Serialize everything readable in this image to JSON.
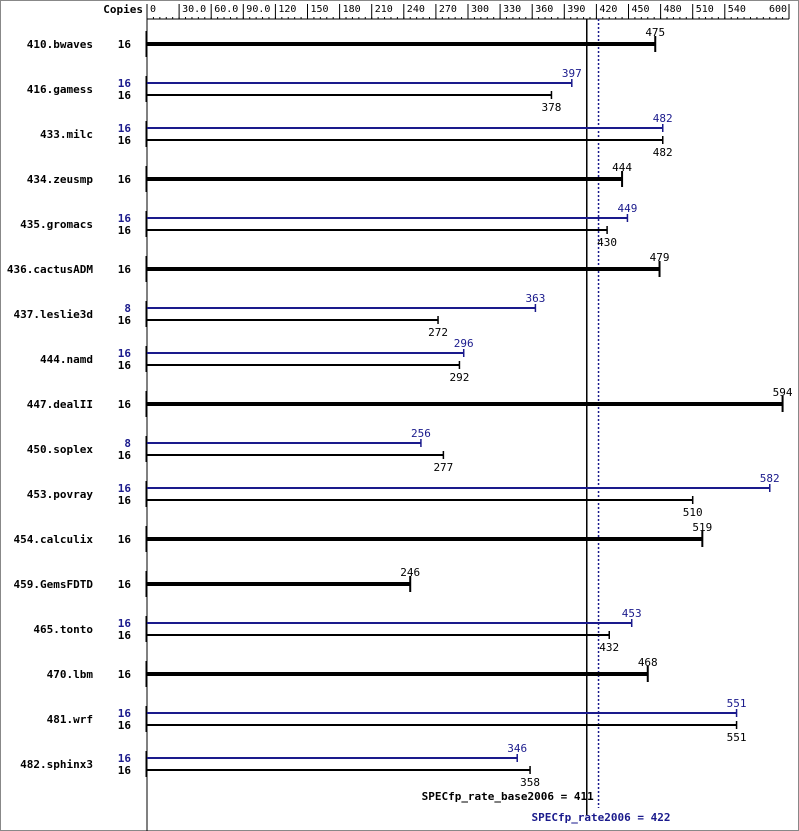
{
  "chart_data": {
    "type": "bar",
    "title": "",
    "copies_header": "Copies",
    "x_ticks": [
      "0",
      "30.0",
      "60.0",
      "90.0",
      "120",
      "150",
      "180",
      "210",
      "240",
      "270",
      "300",
      "330",
      "360",
      "390",
      "420",
      "450",
      "480",
      "510",
      "540",
      "600"
    ],
    "x_tick_values": [
      0,
      30,
      60,
      90,
      120,
      150,
      180,
      210,
      240,
      270,
      300,
      330,
      360,
      390,
      420,
      450,
      480,
      510,
      540,
      600
    ],
    "xlim": [
      0,
      600
    ],
    "colors": {
      "base": "#000000",
      "peak": "#1a1a8c"
    },
    "benchmarks": [
      {
        "name": "410.bwaves",
        "base_copies": "16",
        "base_value": 475,
        "base_label": "475"
      },
      {
        "name": "416.gamess",
        "peak_copies": "16",
        "peak_value": 397,
        "peak_label": "397",
        "base_copies": "16",
        "base_value": 378,
        "base_label": "378"
      },
      {
        "name": "433.milc",
        "peak_copies": "16",
        "peak_value": 482,
        "peak_label": "482",
        "base_copies": "16",
        "base_value": 482,
        "base_label": "482"
      },
      {
        "name": "434.zeusmp",
        "base_copies": "16",
        "base_value": 444,
        "base_label": "444"
      },
      {
        "name": "435.gromacs",
        "peak_copies": "16",
        "peak_value": 449,
        "peak_label": "449",
        "base_copies": "16",
        "base_value": 430,
        "base_label": "430"
      },
      {
        "name": "436.cactusADM",
        "base_copies": "16",
        "base_value": 479,
        "base_label": "479"
      },
      {
        "name": "437.leslie3d",
        "peak_copies": "8",
        "peak_value": 363,
        "peak_label": "363",
        "base_copies": "16",
        "base_value": 272,
        "base_label": "272"
      },
      {
        "name": "444.namd",
        "peak_copies": "16",
        "peak_value": 296,
        "peak_label": "296",
        "base_copies": "16",
        "base_value": 292,
        "base_label": "292"
      },
      {
        "name": "447.dealII",
        "base_copies": "16",
        "base_value": 594,
        "base_label": "594"
      },
      {
        "name": "450.soplex",
        "peak_copies": "8",
        "peak_value": 256,
        "peak_label": "256",
        "base_copies": "16",
        "base_value": 277,
        "base_label": "277"
      },
      {
        "name": "453.povray",
        "peak_copies": "16",
        "peak_value": 582,
        "peak_label": "582",
        "base_copies": "16",
        "base_value": 510,
        "base_label": "510"
      },
      {
        "name": "454.calculix",
        "base_copies": "16",
        "base_value": 519,
        "base_label": "519"
      },
      {
        "name": "459.GemsFDTD",
        "base_copies": "16",
        "base_value": 246,
        "base_label": "246"
      },
      {
        "name": "465.tonto",
        "peak_copies": "16",
        "peak_value": 453,
        "peak_label": "453",
        "base_copies": "16",
        "base_value": 432,
        "base_label": "432"
      },
      {
        "name": "470.lbm",
        "base_copies": "16",
        "base_value": 468,
        "base_label": "468"
      },
      {
        "name": "481.wrf",
        "peak_copies": "16",
        "peak_value": 551,
        "peak_label": "551",
        "base_copies": "16",
        "base_value": 551,
        "base_label": "551"
      },
      {
        "name": "482.sphinx3",
        "peak_copies": "16",
        "peak_value": 346,
        "peak_label": "346",
        "base_copies": "16",
        "base_value": 358,
        "base_label": "358"
      }
    ],
    "summary": {
      "base_value": 411,
      "base_label": "SPECfp_rate_base2006 = 411",
      "peak_value": 422,
      "peak_label": "SPECfp_rate2006 = 422"
    }
  }
}
